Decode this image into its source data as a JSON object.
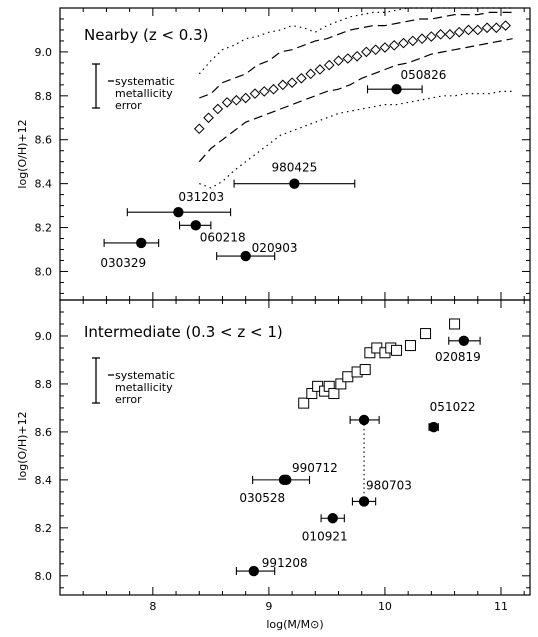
{
  "chart_data": [
    {
      "type": "scatter",
      "title": "Nearby (z < 0.3)",
      "xlabel": "log(M/M⊙)",
      "ylabel": "log(O/H)+12",
      "xlim": [
        7.2,
        11.25
      ],
      "ylim": [
        7.87,
        9.2
      ],
      "annotation": [
        "systematic",
        "metallicity",
        "error"
      ],
      "points": [
        {
          "name": "050826",
          "x": 10.1,
          "y": 8.83,
          "xerr": [
            9.85,
            10.32
          ]
        },
        {
          "name": "980425",
          "x": 9.22,
          "y": 8.4,
          "xerr": [
            8.7,
            9.74
          ]
        },
        {
          "name": "031203",
          "x": 8.22,
          "y": 8.27,
          "xerr": [
            7.78,
            8.67
          ]
        },
        {
          "name": "060218",
          "x": 8.37,
          "y": 8.21,
          "xerr": [
            8.23,
            8.5
          ]
        },
        {
          "name": "030329",
          "x": 7.9,
          "y": 8.13,
          "xerr": [
            7.58,
            8.05
          ]
        },
        {
          "name": "020903",
          "x": 8.8,
          "y": 8.07,
          "xerr": [
            8.55,
            9.05
          ]
        }
      ],
      "reference_series": [
        {
          "style": "diamonds",
          "x": [
            8.4,
            8.48,
            8.56,
            8.64,
            8.72,
            8.8,
            8.88,
            8.96,
            9.04,
            9.12,
            9.2,
            9.28,
            9.36,
            9.44,
            9.52,
            9.6,
            9.68,
            9.76,
            9.84,
            9.92,
            10.0,
            10.08,
            10.16,
            10.24,
            10.32,
            10.4,
            10.48,
            10.56,
            10.64,
            10.72,
            10.8,
            10.88,
            10.96,
            11.04
          ],
          "y": [
            8.65,
            8.7,
            8.74,
            8.77,
            8.78,
            8.79,
            8.81,
            8.82,
            8.83,
            8.85,
            8.86,
            8.88,
            8.9,
            8.92,
            8.94,
            8.96,
            8.97,
            8.98,
            9.0,
            9.01,
            9.02,
            9.03,
            9.04,
            9.05,
            9.06,
            9.07,
            9.08,
            9.08,
            9.09,
            9.1,
            9.1,
            9.11,
            9.11,
            9.12
          ]
        },
        {
          "style": "dashed",
          "x": [
            8.4,
            8.5,
            8.6,
            8.7,
            8.8,
            8.9,
            9.0,
            9.1,
            9.2,
            9.3,
            9.4,
            9.5,
            9.6,
            9.7,
            9.8,
            9.9,
            10.0,
            10.1,
            10.2,
            10.3,
            10.4,
            10.5,
            10.6,
            10.7,
            10.8,
            10.9,
            11.0,
            11.1
          ],
          "y": [
            8.79,
            8.81,
            8.86,
            8.88,
            8.9,
            8.94,
            8.96,
            9.0,
            9.01,
            9.03,
            9.05,
            9.06,
            9.08,
            9.1,
            9.11,
            9.12,
            9.12,
            9.13,
            9.14,
            9.15,
            9.15,
            9.16,
            9.17,
            9.17,
            9.17,
            9.18,
            9.18,
            9.18
          ]
        },
        {
          "style": "dashed",
          "x": [
            8.4,
            8.5,
            8.6,
            8.7,
            8.8,
            8.9,
            9.0,
            9.1,
            9.2,
            9.3,
            9.4,
            9.5,
            9.6,
            9.7,
            9.8,
            9.9,
            10.0,
            10.1,
            10.2,
            10.3,
            10.4,
            10.5,
            10.6,
            10.7,
            10.8,
            10.9,
            11.0,
            11.1
          ],
          "y": [
            8.5,
            8.56,
            8.6,
            8.64,
            8.68,
            8.7,
            8.72,
            8.74,
            8.76,
            8.78,
            8.8,
            8.82,
            8.83,
            8.85,
            8.88,
            8.9,
            8.92,
            8.94,
            8.95,
            8.97,
            8.99,
            9.0,
            9.01,
            9.02,
            9.03,
            9.04,
            9.05,
            9.06
          ]
        },
        {
          "style": "dotted",
          "x": [
            8.4,
            8.5,
            8.6,
            8.7,
            8.8,
            8.9,
            9.0,
            9.1,
            9.2,
            9.3,
            9.4,
            9.5,
            9.6,
            9.7,
            9.8,
            9.9,
            10.0,
            10.1,
            10.2,
            10.3,
            10.4,
            10.5,
            10.6,
            10.7,
            10.8,
            10.9,
            11.0,
            11.1
          ],
          "y": [
            8.9,
            8.96,
            9.01,
            9.03,
            9.06,
            9.07,
            9.09,
            9.1,
            9.12,
            9.11,
            9.09,
            9.12,
            9.14,
            9.16,
            9.17,
            9.18,
            9.18,
            9.19,
            9.2,
            9.2,
            9.2,
            9.2,
            9.2,
            9.2,
            9.2,
            9.2,
            9.2,
            9.2
          ]
        },
        {
          "style": "dotted",
          "x": [
            8.4,
            8.5,
            8.6,
            8.7,
            8.8,
            8.9,
            9.0,
            9.1,
            9.2,
            9.3,
            9.4,
            9.5,
            9.6,
            9.7,
            9.8,
            9.9,
            10.0,
            10.1,
            10.2,
            10.3,
            10.4,
            10.5,
            10.6,
            10.7,
            10.8,
            10.9,
            11.0,
            11.1
          ],
          "y": [
            8.4,
            8.38,
            8.41,
            8.46,
            8.5,
            8.54,
            8.58,
            8.62,
            8.64,
            8.66,
            8.68,
            8.7,
            8.72,
            8.73,
            8.74,
            8.75,
            8.76,
            8.76,
            8.77,
            8.78,
            8.79,
            8.8,
            8.8,
            8.81,
            8.81,
            8.81,
            8.82,
            8.82
          ]
        }
      ]
    },
    {
      "type": "scatter",
      "title": "Intermediate (0.3 < z < 1)",
      "xlabel": "log(M/M⊙)",
      "ylabel": "log(O/H)+12",
      "xlim": [
        7.2,
        11.25
      ],
      "ylim": [
        7.92,
        9.15
      ],
      "xticks": [
        8,
        9,
        10,
        11
      ],
      "annotation": [
        "systematic",
        "metallicity",
        "error"
      ],
      "points": [
        {
          "name": "020819",
          "x": 10.68,
          "y": 8.98,
          "xerr": [
            10.55,
            10.82
          ]
        },
        {
          "name": "051022",
          "x": 10.42,
          "y": 8.62,
          "xerr": [
            10.38,
            10.46
          ]
        },
        {
          "name": "990712",
          "x": 9.13,
          "y": 8.4,
          "xerr": [
            8.86,
            9.35
          ]
        },
        {
          "name": "030528",
          "x": 9.15,
          "y": 8.4,
          "xerr": null
        },
        {
          "name": "980703",
          "x": 9.82,
          "y": 8.31,
          "xerr": [
            9.72,
            9.92
          ]
        },
        {
          "name": "010921",
          "x": 9.55,
          "y": 8.24,
          "xerr": [
            9.45,
            9.65
          ]
        },
        {
          "name": "991208",
          "x": 8.87,
          "y": 8.02,
          "xerr": [
            8.72,
            9.05
          ]
        }
      ],
      "extra_point": {
        "x": 9.82,
        "y": 8.65,
        "xerr": [
          9.7,
          9.95
        ]
      },
      "squares": {
        "x": [
          9.3,
          9.37,
          9.42,
          9.48,
          9.52,
          9.56,
          9.62,
          9.68,
          9.76,
          9.83,
          9.87,
          9.93,
          10.0,
          10.05,
          10.1,
          10.22,
          10.35,
          10.6
        ],
        "y": [
          8.72,
          8.76,
          8.79,
          8.77,
          8.79,
          8.76,
          8.8,
          8.83,
          8.85,
          8.86,
          8.93,
          8.95,
          8.93,
          8.95,
          8.94,
          8.96,
          9.01,
          9.05
        ]
      }
    }
  ]
}
